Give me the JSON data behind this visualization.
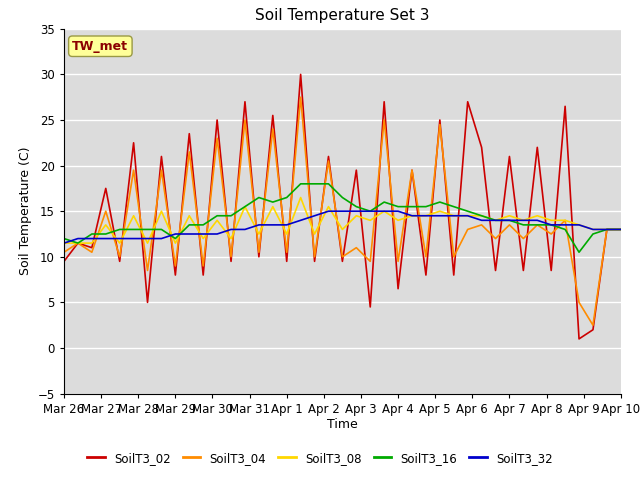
{
  "title": "Soil Temperature Set 3",
  "xlabel": "Time",
  "ylabel": "Soil Temperature (C)",
  "ylim": [
    -5,
    35
  ],
  "annotation_text": "TW_met",
  "annotation_color": "#8B0000",
  "annotation_bg": "#FFFF99",
  "background_color": "#DCDCDC",
  "grid_color": "white",
  "tick_labels": [
    "Mar 26",
    "Mar 27",
    "Mar 28",
    "Mar 29",
    "Mar 30",
    "Mar 31",
    "Apr 1",
    "Apr 2",
    "Apr 3",
    "Apr 4",
    "Apr 5",
    "Apr 6",
    "Apr 7",
    "Apr 8",
    "Apr 9",
    "Apr 10"
  ],
  "legend_entries": [
    "SoilT3_02",
    "SoilT3_04",
    "SoilT3_08",
    "SoilT3_16",
    "SoilT3_32"
  ],
  "line_colors": [
    "#CC0000",
    "#FF8C00",
    "#FFD700",
    "#00AA00",
    "#0000CC"
  ],
  "SoilT3_02": [
    9.5,
    11.5,
    11.0,
    17.5,
    9.5,
    22.5,
    5.0,
    21.0,
    8.0,
    23.5,
    8.0,
    25.0,
    9.5,
    27.0,
    10.0,
    25.5,
    9.5,
    30.0,
    9.5,
    21.0,
    9.5,
    19.5,
    4.5,
    27.0,
    6.5,
    19.5,
    8.0,
    25.0,
    8.0,
    27.0,
    22.0,
    8.5,
    21.0,
    8.5,
    22.0,
    8.5,
    26.5,
    1.0,
    2.0,
    13.0,
    13.0
  ],
  "SoilT3_04": [
    10.5,
    11.5,
    10.5,
    15.0,
    10.0,
    19.5,
    8.5,
    19.5,
    9.0,
    21.5,
    9.0,
    23.0,
    10.0,
    25.0,
    10.5,
    24.0,
    10.5,
    27.5,
    10.0,
    20.5,
    10.0,
    11.0,
    9.5,
    25.0,
    9.5,
    19.5,
    10.0,
    24.5,
    10.0,
    13.0,
    13.5,
    12.0,
    13.5,
    12.0,
    13.5,
    12.5,
    14.0,
    5.0,
    2.5,
    13.0,
    13.0
  ],
  "SoilT3_08": [
    11.5,
    11.5,
    11.5,
    13.5,
    11.5,
    14.5,
    11.5,
    15.0,
    11.5,
    14.5,
    12.0,
    14.0,
    12.0,
    15.5,
    12.5,
    15.5,
    12.5,
    16.5,
    12.5,
    15.5,
    13.0,
    14.5,
    14.0,
    15.0,
    14.0,
    14.5,
    14.5,
    15.0,
    14.5,
    14.5,
    14.5,
    14.0,
    14.5,
    14.0,
    14.5,
    14.0,
    14.0,
    13.5,
    13.0,
    13.0,
    13.0
  ],
  "SoilT3_16": [
    12.0,
    11.5,
    12.5,
    12.5,
    13.0,
    13.0,
    13.0,
    13.0,
    12.0,
    13.5,
    13.5,
    14.5,
    14.5,
    15.5,
    16.5,
    16.0,
    16.5,
    18.0,
    18.0,
    18.0,
    16.5,
    15.5,
    15.0,
    16.0,
    15.5,
    15.5,
    15.5,
    16.0,
    15.5,
    15.0,
    14.5,
    14.0,
    14.0,
    13.5,
    13.5,
    13.5,
    13.0,
    10.5,
    12.5,
    13.0,
    13.0
  ],
  "SoilT3_32": [
    11.5,
    12.0,
    12.0,
    12.0,
    12.0,
    12.0,
    12.0,
    12.0,
    12.5,
    12.5,
    12.5,
    12.5,
    13.0,
    13.0,
    13.5,
    13.5,
    13.5,
    14.0,
    14.5,
    15.0,
    15.0,
    15.0,
    15.0,
    15.0,
    15.0,
    14.5,
    14.5,
    14.5,
    14.5,
    14.5,
    14.0,
    14.0,
    14.0,
    14.0,
    14.0,
    13.5,
    13.5,
    13.5,
    13.0,
    13.0,
    13.0
  ]
}
